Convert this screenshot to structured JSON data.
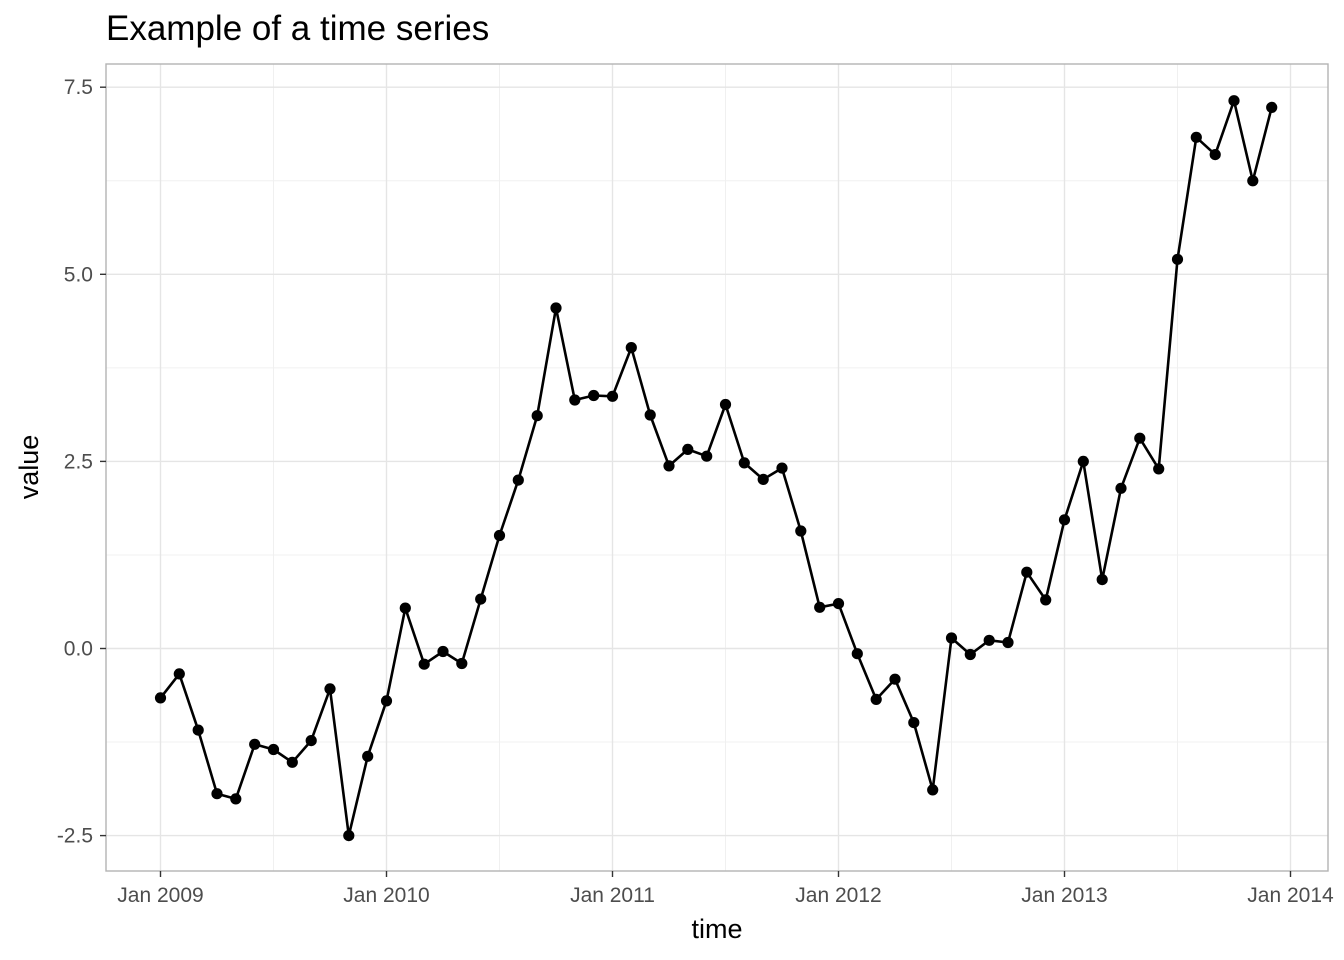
{
  "chart_data": {
    "type": "line",
    "title": "Example of a time series",
    "xlabel": "time",
    "ylabel": "value",
    "x_ticks": [
      "Jan 2009",
      "Jan 2010",
      "Jan 2011",
      "Jan 2012",
      "Jan 2013",
      "Jan 2014"
    ],
    "y_ticks": [
      "-2.5",
      "0.0",
      "2.5",
      "5.0",
      "7.5"
    ],
    "ylim": [
      -3.0,
      7.8
    ],
    "grid": true,
    "markers": true,
    "line_color": "#000000",
    "series": [
      {
        "x": [
          "2009-01",
          "2009-02",
          "2009-03",
          "2009-04",
          "2009-05",
          "2009-06",
          "2009-07",
          "2009-08",
          "2009-09",
          "2009-10",
          "2009-11",
          "2009-12",
          "2010-01",
          "2010-02",
          "2010-03",
          "2010-04",
          "2010-05",
          "2010-06",
          "2010-07",
          "2010-08",
          "2010-09",
          "2010-10",
          "2010-11",
          "2010-12",
          "2011-01",
          "2011-02",
          "2011-03",
          "2011-04",
          "2011-05",
          "2011-06",
          "2011-07",
          "2011-08",
          "2011-09",
          "2011-10",
          "2011-11",
          "2011-12",
          "2012-01",
          "2012-02",
          "2012-03",
          "2012-04",
          "2012-05",
          "2012-06",
          "2012-07",
          "2012-08",
          "2012-09",
          "2012-10",
          "2012-11",
          "2012-12",
          "2013-01",
          "2013-02",
          "2013-03",
          "2013-04",
          "2013-05",
          "2013-06",
          "2013-07",
          "2013-08",
          "2013-09",
          "2013-10",
          "2013-11",
          "2013-12"
        ],
        "values": [
          -0.66,
          -0.34,
          -1.09,
          -1.94,
          -2.01,
          -1.28,
          -1.35,
          -1.52,
          -1.23,
          -0.54,
          -2.5,
          -1.44,
          -0.7,
          0.54,
          -0.21,
          -0.04,
          -0.2,
          0.66,
          1.51,
          2.25,
          3.11,
          4.55,
          3.32,
          3.38,
          3.37,
          4.02,
          3.12,
          2.44,
          2.66,
          2.57,
          3.26,
          2.48,
          2.26,
          2.41,
          1.57,
          0.55,
          0.6,
          -0.07,
          -0.68,
          -0.41,
          -0.99,
          -1.89,
          0.14,
          -0.08,
          0.11,
          0.08,
          1.02,
          0.65,
          1.72,
          2.5,
          0.92,
          2.14,
          2.81,
          2.4,
          5.2,
          6.83,
          6.6,
          7.32,
          6.25,
          7.23
        ]
      }
    ]
  }
}
